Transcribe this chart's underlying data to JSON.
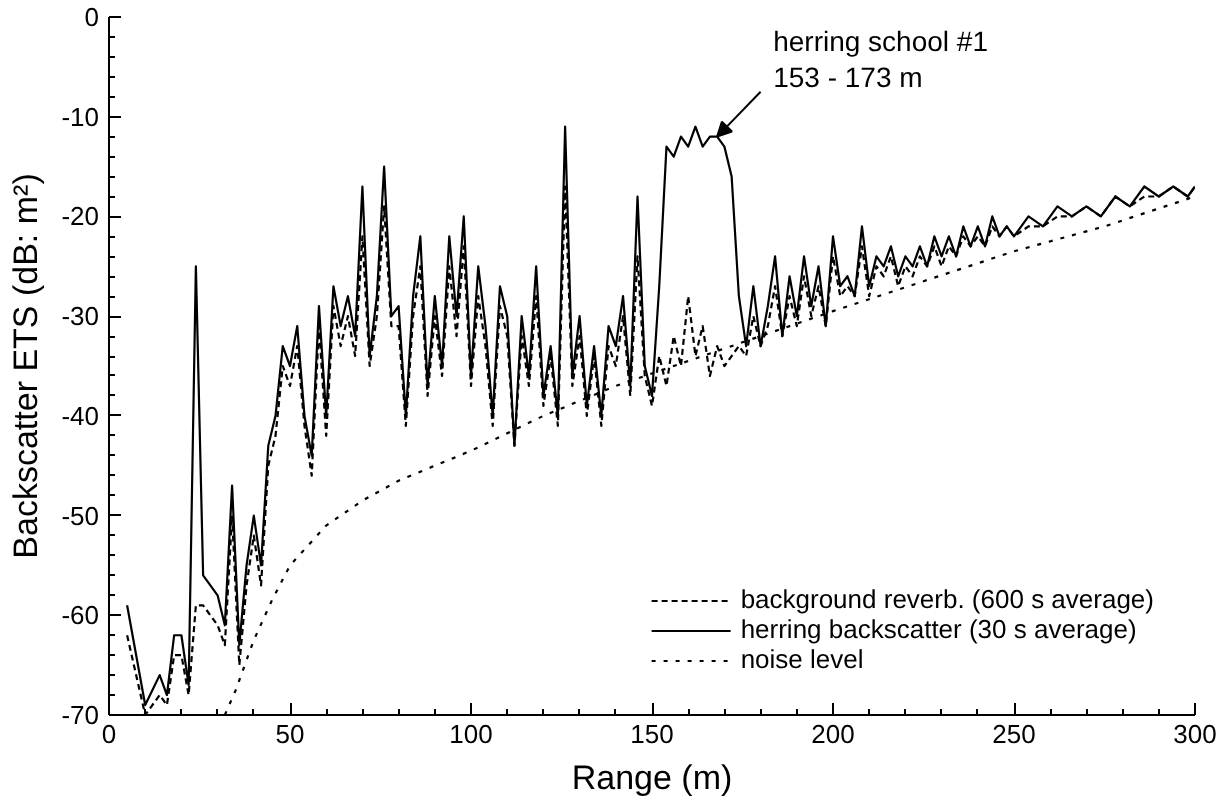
{
  "chart_data": {
    "type": "line",
    "xlabel": "Range (m)",
    "ylabel": "Backscatter ETS (dB: m²)",
    "xlim": [
      0,
      300
    ],
    "ylim": [
      -70,
      0
    ],
    "xticks": [
      0,
      {
        "value": 10,
        "label": null
      },
      {
        "value": 20,
        "label": null
      },
      {
        "value": 30,
        "label": null
      },
      {
        "value": 40,
        "label": null
      },
      50,
      {
        "value": 60,
        "label": null
      },
      {
        "value": 70,
        "label": null
      },
      {
        "value": 80,
        "label": null
      },
      {
        "value": 90,
        "label": null
      },
      100,
      {
        "value": 110,
        "label": null
      },
      {
        "value": 120,
        "label": null
      },
      {
        "value": 130,
        "label": null
      },
      {
        "value": 140,
        "label": null
      },
      150,
      {
        "value": 160,
        "label": null
      },
      {
        "value": 170,
        "label": null
      },
      {
        "value": 180,
        "label": null
      },
      {
        "value": 190,
        "label": null
      },
      200,
      {
        "value": 210,
        "label": null
      },
      {
        "value": 220,
        "label": null
      },
      {
        "value": 230,
        "label": null
      },
      {
        "value": 240,
        "label": null
      },
      250,
      {
        "value": 260,
        "label": null
      },
      {
        "value": 270,
        "label": null
      },
      {
        "value": 280,
        "label": null
      },
      {
        "value": 290,
        "label": null
      },
      300
    ],
    "yticks": [
      -70,
      {
        "value": -68,
        "label": null
      },
      {
        "value": -66,
        "label": null
      },
      {
        "value": -64,
        "label": null
      },
      {
        "value": -62,
        "label": null
      },
      -60,
      {
        "value": -58,
        "label": null
      },
      {
        "value": -56,
        "label": null
      },
      {
        "value": -54,
        "label": null
      },
      {
        "value": -52,
        "label": null
      },
      -50,
      {
        "value": -48,
        "label": null
      },
      {
        "value": -46,
        "label": null
      },
      {
        "value": -44,
        "label": null
      },
      {
        "value": -42,
        "label": null
      },
      -40,
      {
        "value": -38,
        "label": null
      },
      {
        "value": -36,
        "label": null
      },
      {
        "value": -34,
        "label": null
      },
      {
        "value": -32,
        "label": null
      },
      -30,
      {
        "value": -28,
        "label": null
      },
      {
        "value": -26,
        "label": null
      },
      {
        "value": -24,
        "label": null
      },
      {
        "value": -22,
        "label": null
      },
      -20,
      {
        "value": -18,
        "label": null
      },
      {
        "value": -16,
        "label": null
      },
      {
        "value": -14,
        "label": null
      },
      {
        "value": -12,
        "label": null
      },
      -10,
      {
        "value": -8,
        "label": null
      },
      {
        "value": -6,
        "label": null
      },
      {
        "value": -4,
        "label": null
      },
      {
        "value": -2,
        "label": null
      },
      0
    ],
    "grid": false,
    "legend": "bottom right",
    "annotations": [
      {
        "text": "herring school #1\n153 - 173 m",
        "x": 168,
        "y": -12
      }
    ],
    "series": [
      {
        "name": "background reverb. (600 s average)",
        "color": "#000000",
        "line_style": "dashed",
        "x": [
          5,
          10,
          14,
          16,
          18,
          20,
          22,
          24,
          26,
          28,
          30,
          32,
          34,
          36,
          38,
          40,
          42,
          44,
          46,
          48,
          50,
          52,
          54,
          56,
          58,
          60,
          62,
          64,
          66,
          68,
          70,
          72,
          74,
          76,
          78,
          80,
          82,
          84,
          86,
          88,
          90,
          92,
          94,
          96,
          98,
          100,
          102,
          104,
          106,
          108,
          110,
          112,
          114,
          116,
          118,
          120,
          122,
          124,
          126,
          128,
          130,
          132,
          134,
          136,
          138,
          140,
          142,
          144,
          146,
          148,
          150,
          152,
          154,
          156,
          158,
          160,
          162,
          164,
          166,
          168,
          170,
          172,
          174,
          176,
          178,
          180,
          182,
          184,
          186,
          188,
          190,
          192,
          194,
          196,
          198,
          200,
          202,
          204,
          206,
          208,
          210,
          212,
          214,
          216,
          218,
          220,
          222,
          224,
          226,
          228,
          230,
          232,
          234,
          236,
          238,
          240,
          242,
          244,
          246,
          248,
          250,
          254,
          258,
          262,
          266,
          270,
          274,
          278,
          282,
          286,
          290,
          294,
          298,
          300
        ],
        "values": [
          -62,
          -70,
          -68,
          -69,
          -64,
          -64,
          -68,
          -59,
          -59,
          -60,
          -61,
          -63,
          -50,
          -65,
          -57,
          -52,
          -57,
          -45,
          -42,
          -35,
          -37,
          -33,
          -41,
          -46,
          -31,
          -42,
          -29,
          -33,
          -30,
          -34,
          -22,
          -35,
          -30,
          -19,
          -31,
          -31,
          -41,
          -30,
          -25,
          -38,
          -30,
          -36,
          -25,
          -32,
          -23,
          -37,
          -28,
          -33,
          -41,
          -29,
          -32,
          -43,
          -32,
          -37,
          -28,
          -39,
          -34,
          -41,
          -17,
          -37,
          -32,
          -40,
          -34,
          -41,
          -33,
          -35,
          -30,
          -38,
          -24,
          -36,
          -39,
          -34,
          -37,
          -32,
          -35,
          -28,
          -34,
          -31,
          -36,
          -33,
          -35,
          -34,
          -33,
          -34,
          -30,
          -33,
          -31,
          -27,
          -32,
          -28,
          -31,
          -26,
          -30,
          -27,
          -31,
          -24,
          -28,
          -27,
          -28,
          -23,
          -28,
          -25,
          -26,
          -24,
          -27,
          -25,
          -26,
          -24,
          -25,
          -23,
          -25,
          -23,
          -24,
          -22,
          -23,
          -22,
          -23,
          -21,
          -22,
          -21,
          -22,
          -21,
          -21,
          -20,
          -20,
          -19,
          -20,
          -18,
          -19,
          -18,
          -18,
          -17,
          -18,
          -17
        ]
      },
      {
        "name": "herring backscatter (30 s average)",
        "color": "#000000",
        "line_style": "solid",
        "x": [
          5,
          10,
          14,
          16,
          18,
          20,
          22,
          24,
          26,
          28,
          30,
          32,
          34,
          36,
          38,
          40,
          42,
          44,
          46,
          48,
          50,
          52,
          54,
          56,
          58,
          60,
          62,
          64,
          66,
          68,
          70,
          72,
          74,
          76,
          78,
          80,
          82,
          84,
          86,
          88,
          90,
          92,
          94,
          96,
          98,
          100,
          102,
          104,
          106,
          108,
          110,
          112,
          114,
          116,
          118,
          120,
          122,
          124,
          126,
          128,
          130,
          132,
          134,
          136,
          138,
          140,
          142,
          144,
          146,
          148,
          150,
          152,
          154,
          156,
          158,
          160,
          162,
          164,
          166,
          168,
          170,
          172,
          174,
          176,
          178,
          180,
          182,
          184,
          186,
          188,
          190,
          192,
          194,
          196,
          198,
          200,
          202,
          204,
          206,
          208,
          210,
          212,
          214,
          216,
          218,
          220,
          222,
          224,
          226,
          228,
          230,
          232,
          234,
          236,
          238,
          240,
          242,
          244,
          246,
          248,
          250,
          254,
          258,
          262,
          266,
          270,
          274,
          278,
          282,
          286,
          290,
          294,
          298,
          300
        ],
        "values": [
          -59,
          -69,
          -66,
          -68,
          -62,
          -62,
          -67,
          -25,
          -56,
          -57,
          -58,
          -61,
          -47,
          -63,
          -55,
          -50,
          -55,
          -43,
          -40,
          -33,
          -35,
          -31,
          -40,
          -44,
          -29,
          -40,
          -27,
          -31,
          -28,
          -32,
          -17,
          -34,
          -28,
          -15,
          -30,
          -29,
          -40,
          -28,
          -22,
          -37,
          -28,
          -35,
          -22,
          -30,
          -20,
          -36,
          -25,
          -31,
          -40,
          -27,
          -30,
          -43,
          -30,
          -36,
          -25,
          -38,
          -33,
          -40,
          -11,
          -36,
          -30,
          -39,
          -33,
          -40,
          -31,
          -33,
          -28,
          -37,
          -18,
          -35,
          -38,
          -27,
          -13,
          -14,
          -12,
          -13,
          -11,
          -13,
          -12,
          -12,
          -13,
          -16,
          -28,
          -33,
          -27,
          -33,
          -29,
          -24,
          -32,
          -26,
          -30,
          -24,
          -29,
          -25,
          -31,
          -22,
          -27,
          -26,
          -28,
          -21,
          -27,
          -24,
          -25,
          -23,
          -26,
          -24,
          -25,
          -23,
          -25,
          -22,
          -24,
          -22,
          -24,
          -21,
          -23,
          -21,
          -23,
          -20,
          -22,
          -21,
          -22,
          -20,
          -21,
          -19,
          -20,
          -19,
          -20,
          -18,
          -19,
          -17,
          -18,
          -17,
          -18,
          -17
        ]
      },
      {
        "name": "noise level",
        "color": "#000000",
        "line_style": "dotted",
        "x": [
          32,
          35,
          40,
          45,
          50,
          60,
          70,
          80,
          90,
          100,
          120,
          140,
          160,
          180,
          200,
          225,
          250,
          275,
          300
        ],
        "values": [
          -70,
          -67.5,
          -62.5,
          -58.5,
          -55,
          -51,
          -48.5,
          -46.5,
          -45,
          -43.5,
          -40,
          -37,
          -34.5,
          -32,
          -29.5,
          -26.5,
          -23.5,
          -21,
          -18
        ]
      }
    ]
  }
}
